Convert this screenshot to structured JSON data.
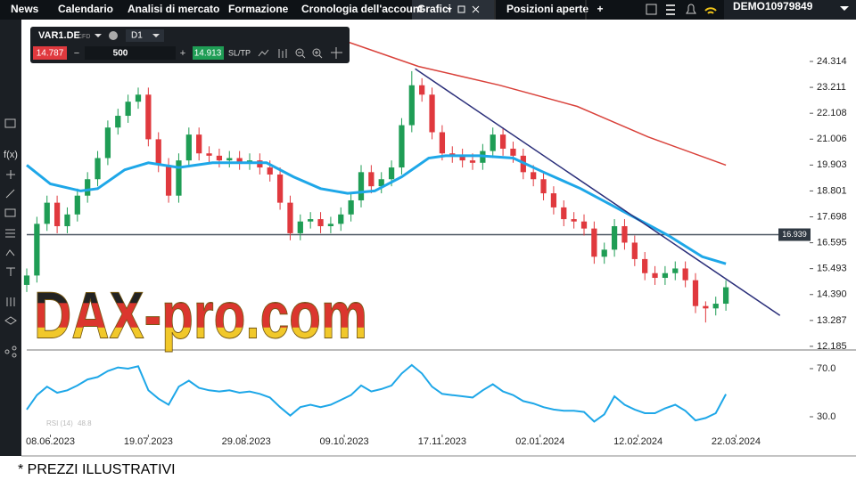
{
  "nav": {
    "tabs": [
      "News",
      "Calendario",
      "Analisi di mercato",
      "Formazione",
      "Cronologia dell'account"
    ],
    "active_tab": "Grafici",
    "tab_after": "Posizioni aperte",
    "add": "+",
    "account_mode": "DEMO",
    "account_number": "10979849"
  },
  "toolbar": {
    "symbol": "VAR1.DE",
    "instrument": "CFD",
    "timeframe": "D1",
    "sell": "14.787",
    "minus": "−",
    "volume": "500",
    "plus": "+",
    "buy": "14.913",
    "sltp": "SL/TP"
  },
  "sidebar": {
    "fx": "f(x)"
  },
  "watermark": "DAX-pro.com",
  "footer": "* PREZZI ILLUSTRATIVI",
  "chart_data": {
    "type": "candlestick",
    "up_color": "#1f9d55",
    "down_color": "#e0393e",
    "x": [
      -7,
      -4,
      -1,
      2,
      5,
      8,
      11,
      14,
      17,
      20,
      23,
      26,
      29,
      32,
      35,
      38,
      41,
      44,
      47,
      50,
      53,
      56,
      59,
      62,
      65,
      68,
      71,
      74,
      77,
      80,
      83,
      86,
      89,
      92,
      95,
      98,
      101,
      104,
      107,
      110,
      113,
      116,
      119,
      122,
      125,
      128,
      131,
      134,
      137,
      140,
      143,
      146,
      149,
      152,
      155,
      158,
      161,
      164,
      167,
      170,
      173,
      176,
      179,
      182,
      185,
      188,
      191,
      194,
      197,
      200
    ],
    "open": [
      14.8,
      15.2,
      17.4,
      18.3,
      17.3,
      17.8,
      18.6,
      19.3,
      20.2,
      21.5,
      22.0,
      22.6,
      22.9,
      21.0,
      19.9,
      18.6,
      20.1,
      21.2,
      20.4,
      20.3,
      20.1,
      20.2,
      20.0,
      20.1,
      19.8,
      19.5,
      18.3,
      17.0,
      17.5,
      17.6,
      17.3,
      17.4,
      17.8,
      18.4,
      19.6,
      19.0,
      19.3,
      19.8,
      21.6,
      23.3,
      22.9,
      21.3,
      20.4,
      20.3,
      20.1,
      20.0,
      20.5,
      21.2,
      20.6,
      20.3,
      19.6,
      19.3,
      18.7,
      18.1,
      17.6,
      17.5,
      17.2,
      16.0,
      16.3,
      17.3,
      16.6,
      15.9,
      15.3,
      15.1,
      15.3,
      15.5,
      15.0,
      13.9,
      13.8,
      14.0
    ],
    "high": [
      15.5,
      17.7,
      18.6,
      18.6,
      18.1,
      18.9,
      19.6,
      20.5,
      21.8,
      22.3,
      22.9,
      23.2,
      23.2,
      21.3,
      20.2,
      20.4,
      21.5,
      21.5,
      20.7,
      20.6,
      20.5,
      20.5,
      20.4,
      20.4,
      20.1,
      19.8,
      18.6,
      17.8,
      17.9,
      17.9,
      17.7,
      18.1,
      18.7,
      19.9,
      19.9,
      19.6,
      20.1,
      21.9,
      23.9,
      23.6,
      23.2,
      21.6,
      20.7,
      20.6,
      20.4,
      20.8,
      21.5,
      21.5,
      20.9,
      20.6,
      19.9,
      19.6,
      19.0,
      18.4,
      17.9,
      17.8,
      17.5,
      16.6,
      17.6,
      17.6,
      16.9,
      16.2,
      15.6,
      15.6,
      15.8,
      15.8,
      15.3,
      14.1,
      14.3,
      15.0
    ],
    "low": [
      14.5,
      14.9,
      17.1,
      17.0,
      17.0,
      17.5,
      18.3,
      19.0,
      19.9,
      21.2,
      21.7,
      22.3,
      20.7,
      19.6,
      18.3,
      18.3,
      19.8,
      20.1,
      20.0,
      19.8,
      19.8,
      19.7,
      19.7,
      19.5,
      19.2,
      18.0,
      16.7,
      16.7,
      17.2,
      17.0,
      17.0,
      17.1,
      17.5,
      18.1,
      18.7,
      18.7,
      19.0,
      19.5,
      21.3,
      22.6,
      21.0,
      20.1,
      20.0,
      19.8,
      19.7,
      19.7,
      20.2,
      20.3,
      20.0,
      19.3,
      19.0,
      18.4,
      17.8,
      17.3,
      17.2,
      16.9,
      15.7,
      15.7,
      16.0,
      16.3,
      15.6,
      15.0,
      14.8,
      14.8,
      15.0,
      14.7,
      13.6,
      13.2,
      13.5,
      13.7
    ],
    "close": [
      15.2,
      17.4,
      18.3,
      17.3,
      17.8,
      18.6,
      19.3,
      20.2,
      21.5,
      22.0,
      22.6,
      22.9,
      21.0,
      19.9,
      18.6,
      20.1,
      21.2,
      20.4,
      20.3,
      20.1,
      20.2,
      20.0,
      20.1,
      19.8,
      19.5,
      18.3,
      17.0,
      17.5,
      17.6,
      17.3,
      17.4,
      17.8,
      18.4,
      19.6,
      19.0,
      19.3,
      19.8,
      21.6,
      23.3,
      22.9,
      21.3,
      20.4,
      20.3,
      20.1,
      20.0,
      20.5,
      21.2,
      20.6,
      20.3,
      19.6,
      19.3,
      18.7,
      18.1,
      17.6,
      17.5,
      17.2,
      16.0,
      16.3,
      17.3,
      16.6,
      15.9,
      15.3,
      15.1,
      15.3,
      15.5,
      15.0,
      13.9,
      13.8,
      14.0,
      14.7
    ],
    "xlim": [
      -7,
      224
    ],
    "xticks": [
      {
        "value": 0,
        "label": "08.06.2023"
      },
      {
        "value": 29,
        "label": "19.07.2023"
      },
      {
        "value": 58,
        "label": "29.08.2023"
      },
      {
        "value": 87,
        "label": "09.10.2023"
      },
      {
        "value": 116,
        "label": "17.11.2023"
      },
      {
        "value": 145,
        "label": "02.01.2024"
      },
      {
        "value": 174,
        "label": "12.02.2024"
      },
      {
        "value": 203,
        "label": "22.03.2024"
      }
    ],
    "ylim": [
      12.03,
      26.02
    ],
    "yticks": [
      24.314,
      23.211,
      22.108,
      21.006,
      19.903,
      18.801,
      17.698,
      16.595,
      15.493,
      {
        "value": 14.39,
        "label": "14.390"
      },
      13.287,
      12.185
    ],
    "hline": 16.939,
    "overlays": [
      {
        "color": "#1ea7e8",
        "x": [
          -7,
          0,
          9,
          14,
          22,
          29,
          38,
          48,
          64,
          72,
          80,
          88,
          96,
          104,
          112,
          117,
          127,
          137,
          146,
          157,
          170,
          183,
          193,
          200
        ],
        "values": [
          19.9,
          19.1,
          18.8,
          18.9,
          19.7,
          20.0,
          19.8,
          20.0,
          20.0,
          19.4,
          18.9,
          18.7,
          18.8,
          19.4,
          20.2,
          20.3,
          20.3,
          20.2,
          19.6,
          18.9,
          17.9,
          16.9,
          16.0,
          15.7
        ]
      },
      {
        "color": "#d9413a",
        "x": [
          83,
          109,
          133,
          156,
          177,
          200
        ],
        "values": [
          25.4,
          24.1,
          23.3,
          22.4,
          21.1,
          19.9
        ]
      },
      {
        "color": "#2b2f7a",
        "x": [
          108,
          216
        ],
        "values": [
          24.0,
          13.5
        ]
      }
    ],
    "rsi": {
      "title": "RSI (14)",
      "color": "#1ea7e8",
      "ylim": [
        15.2,
        83.3
      ],
      "yticks": [
        {
          "value": 70,
          "label": "70.0"
        },
        {
          "value": 30,
          "label": "30.0"
        }
      ],
      "values": [
        36,
        48,
        55,
        50,
        52,
        56,
        61,
        63,
        68,
        71,
        70,
        72,
        52,
        45,
        40,
        55,
        60,
        54,
        52,
        51,
        52,
        50,
        51,
        49,
        46,
        38,
        31,
        38,
        40,
        38,
        40,
        44,
        48,
        56,
        51,
        53,
        56,
        66,
        73,
        66,
        55,
        49,
        48,
        47,
        46,
        52,
        57,
        51,
        48,
        43,
        41,
        38,
        36,
        35,
        35,
        34,
        26,
        32,
        47,
        40,
        36,
        33,
        33,
        37,
        40,
        35,
        27,
        29,
        33,
        48.8
      ]
    }
  }
}
